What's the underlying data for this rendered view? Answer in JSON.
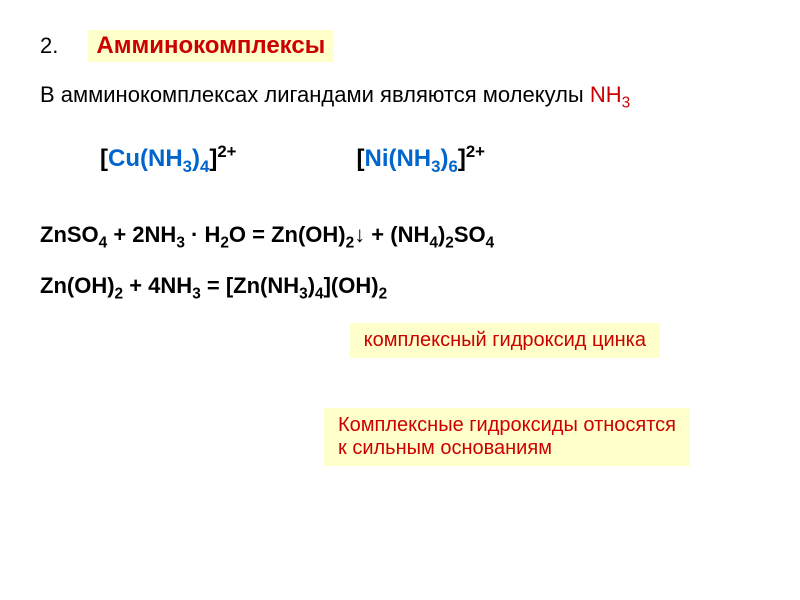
{
  "item_number": "2.",
  "title_highlight": "Амминокомплексы",
  "intro_text_prefix": "В амминокомплексах лигандами являются молекулы ",
  "intro_formula": "NH",
  "intro_formula_sub": "3",
  "formula1_bracket_open": "[",
  "formula1_cu": "Cu(NH",
  "formula1_sub1": "3",
  "formula1_close_inner": ")",
  "formula1_sub2": "4",
  "formula1_bracket_close": "]",
  "formula1_charge": "2+",
  "formula2_bracket_open": "[",
  "formula2_ni": "Ni(NH",
  "formula2_sub1": "3",
  "formula2_close_inner": ")",
  "formula2_sub2": "6",
  "formula2_bracket_close": "]",
  "formula2_charge": "2+",
  "eq1_part1": "ZnSO",
  "eq1_sub1": "4",
  "eq1_part2": " + 2NH",
  "eq1_sub2": "3",
  "eq1_part3": " · H",
  "eq1_sub3": "2",
  "eq1_part4": "O = Zn(OH)",
  "eq1_sub4": "2",
  "eq1_part5": "↓  + (NH",
  "eq1_sub5": "4",
  "eq1_part6": ")",
  "eq1_sub6": "2",
  "eq1_part7": "SO",
  "eq1_sub7": "4",
  "eq2_part1": "Zn(OH)",
  "eq2_sub1": "2",
  "eq2_part2": " + 4NH",
  "eq2_sub2": "3",
  "eq2_part3": " = [Zn(NH",
  "eq2_sub3": "3",
  "eq2_part4": ")",
  "eq2_sub4": "4",
  "eq2_part5": "](OH)",
  "eq2_sub5": "2",
  "label1": "комплексный гидроксид цинка",
  "label2_line1": "Комплексные гидроксиды относятся",
  "label2_line2": "к сильным основаниям",
  "colors": {
    "background": "#ffffff",
    "highlight_bg": "#ffffcc",
    "red": "#cc0000",
    "blue": "#0066cc",
    "black": "#000000"
  },
  "fonts": {
    "body_size": 22,
    "title_size": 24,
    "formula_size": 24,
    "label_size": 20
  }
}
